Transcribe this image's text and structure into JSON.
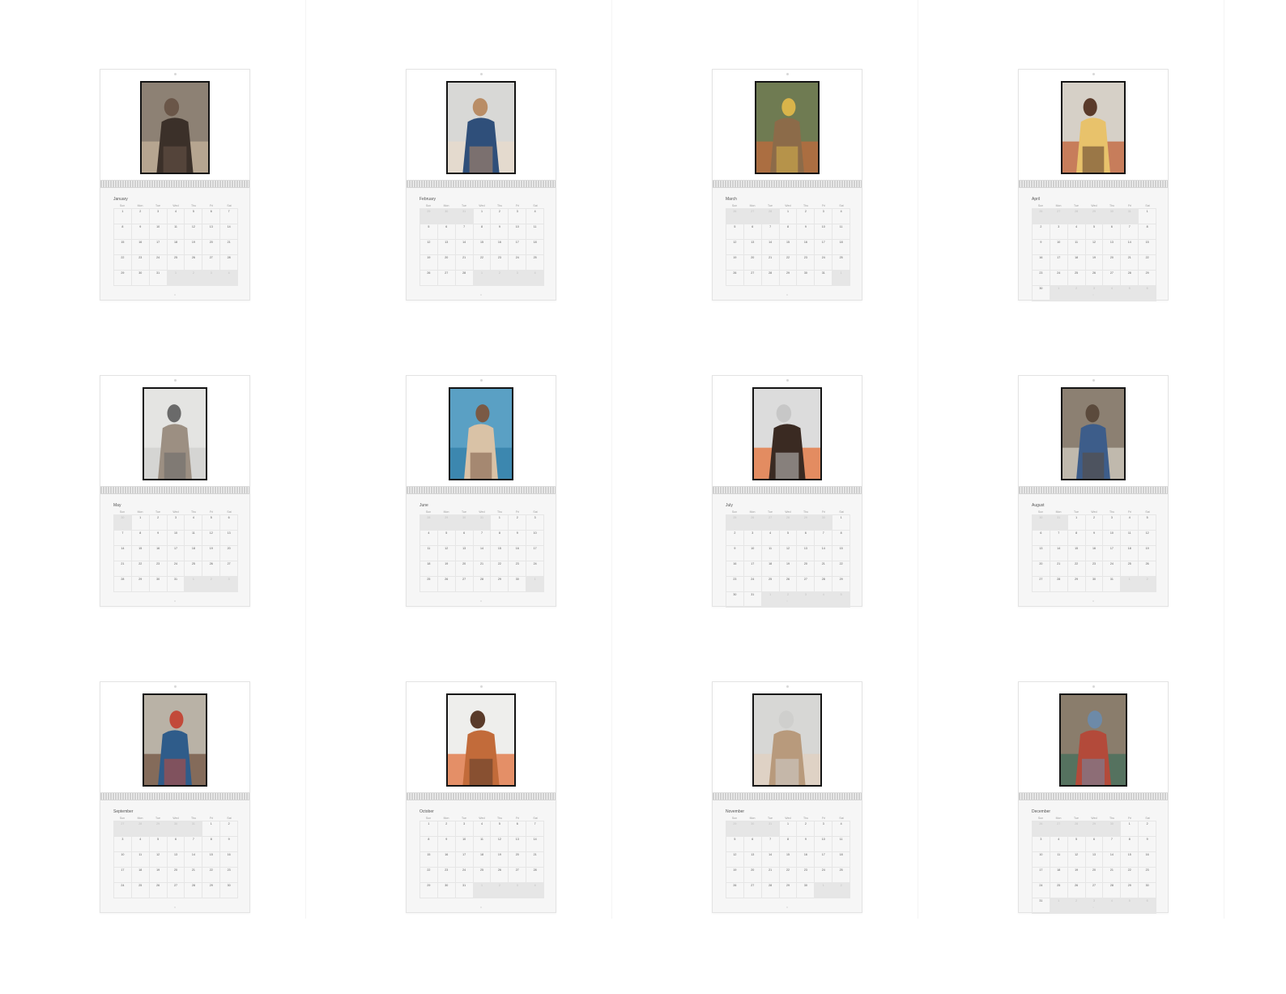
{
  "weekday_labels": [
    "Sun",
    "Mon",
    "Tue",
    "Wed",
    "Thu",
    "Fri",
    "Sat"
  ],
  "months": [
    {
      "name": "January",
      "first_weekday": 0,
      "days": 31,
      "prev_days": 31,
      "photo": "couple-embracing-photo"
    },
    {
      "name": "February",
      "first_weekday": 3,
      "days": 28,
      "prev_days": 31,
      "photo": "woman-in-crop-top-photo"
    },
    {
      "name": "March",
      "first_weekday": 3,
      "days": 31,
      "prev_days": 28,
      "photo": "group-in-woods-photo"
    },
    {
      "name": "April",
      "first_weekday": 6,
      "days": 30,
      "prev_days": 31,
      "photo": "woman-striped-sweater-photo"
    },
    {
      "name": "May",
      "first_weekday": 1,
      "days": 31,
      "prev_days": 30,
      "photo": "man-jumping-photo"
    },
    {
      "name": "June",
      "first_weekday": 4,
      "days": 30,
      "prev_days": 31,
      "photo": "group-by-pool-photo"
    },
    {
      "name": "July",
      "first_weekday": 6,
      "days": 31,
      "prev_days": 30,
      "photo": "man-orange-shirt-photo"
    },
    {
      "name": "August",
      "first_weekday": 2,
      "days": 31,
      "prev_days": 31,
      "photo": "couple-on-porch-photo"
    },
    {
      "name": "September",
      "first_weekday": 5,
      "days": 30,
      "prev_days": 31,
      "photo": "man-with-jacket-photo"
    },
    {
      "name": "October",
      "first_weekday": 0,
      "days": 31,
      "prev_days": 30,
      "photo": "couple-orange-outfits-photo"
    },
    {
      "name": "November",
      "first_weekday": 3,
      "days": 30,
      "prev_days": 31,
      "photo": "woman-beach-photo"
    },
    {
      "name": "December",
      "first_weekday": 5,
      "days": 31,
      "prev_days": 30,
      "photo": "group-on-patio-photo"
    }
  ],
  "colors": {
    "page_background": "#ffffff",
    "calendar_bottom": "#f6f6f6",
    "out_of_month_cell": "#e6e6e6",
    "photo_border": "#141414"
  }
}
